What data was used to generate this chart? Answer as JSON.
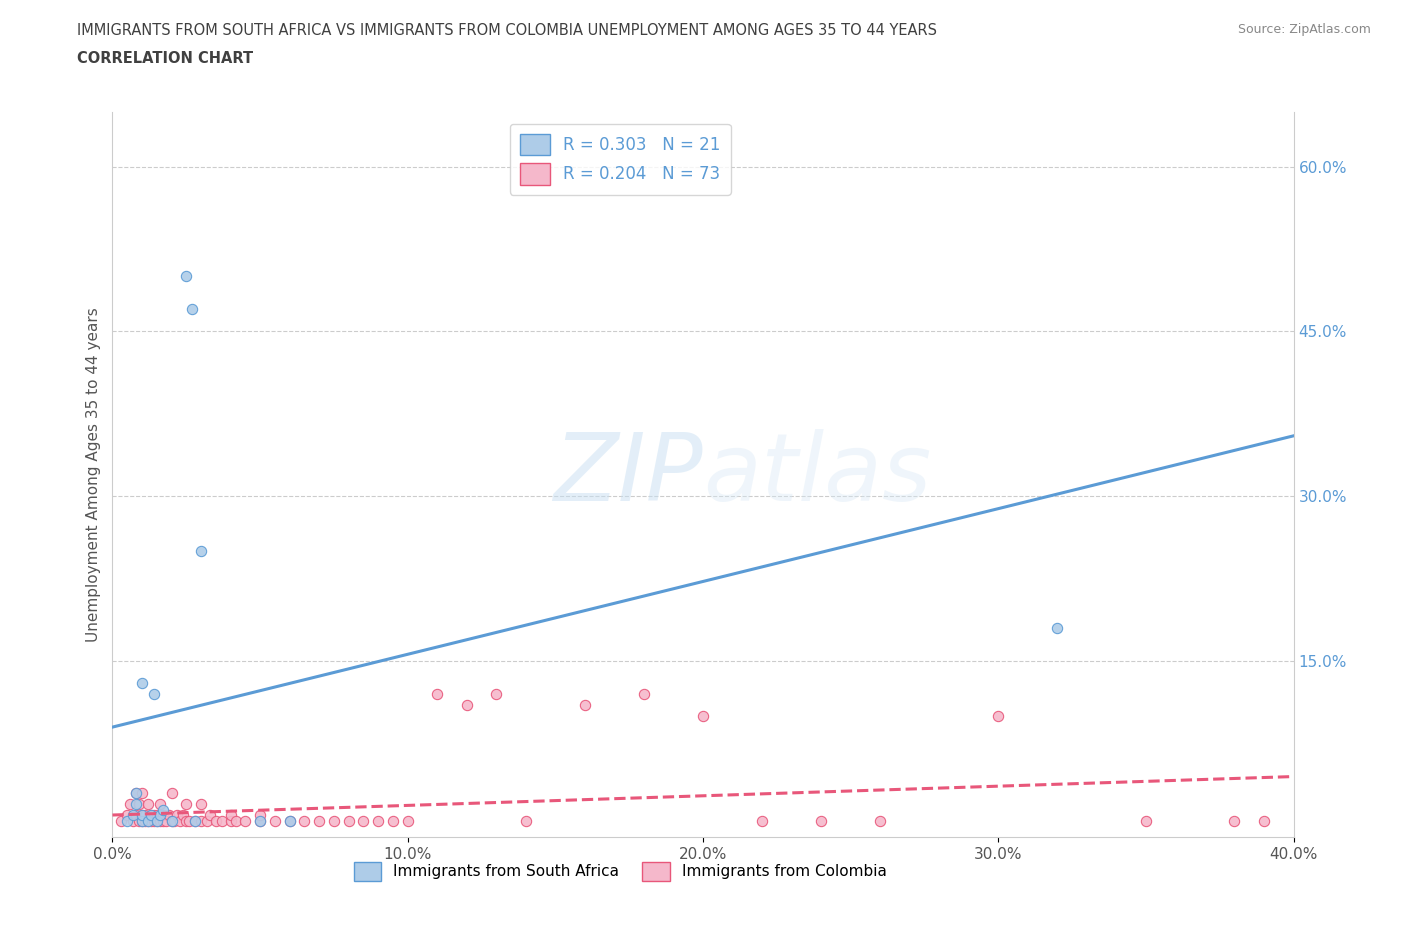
{
  "title_line1": "IMMIGRANTS FROM SOUTH AFRICA VS IMMIGRANTS FROM COLOMBIA UNEMPLOYMENT AMONG AGES 35 TO 44 YEARS",
  "title_line2": "CORRELATION CHART",
  "source_text": "Source: ZipAtlas.com",
  "ylabel": "Unemployment Among Ages 35 to 44 years",
  "xlim": [
    0.0,
    0.4
  ],
  "ylim": [
    -0.01,
    0.65
  ],
  "xticks": [
    0.0,
    0.1,
    0.2,
    0.3,
    0.4
  ],
  "xticklabels": [
    "0.0%",
    "10.0%",
    "20.0%",
    "30.0%",
    "40.0%"
  ],
  "right_ytick_positions": [
    0.15,
    0.3,
    0.45,
    0.6
  ],
  "right_ytick_labels": [
    "15.0%",
    "30.0%",
    "45.0%",
    "60.0%"
  ],
  "south_africa_color": "#aecce8",
  "colombia_color": "#f5b8cb",
  "south_africa_edge_color": "#5b9bd5",
  "colombia_edge_color": "#e8577a",
  "south_africa_line_color": "#5b9bd5",
  "colombia_line_color": "#e8577a",
  "watermark_zip": "ZIP",
  "watermark_atlas": "atlas",
  "legend_R_sa": "R = 0.303",
  "legend_N_sa": "N = 21",
  "legend_R_co": "R = 0.204",
  "legend_N_co": "N = 73",
  "legend_label_sa": "Immigrants from South Africa",
  "legend_label_co": "Immigrants from Colombia",
  "south_africa_x": [
    0.005,
    0.007,
    0.008,
    0.008,
    0.01,
    0.01,
    0.01,
    0.012,
    0.013,
    0.014,
    0.015,
    0.016,
    0.017,
    0.02,
    0.025,
    0.027,
    0.028,
    0.03,
    0.05,
    0.06,
    0.32
  ],
  "south_africa_y": [
    0.005,
    0.01,
    0.02,
    0.03,
    0.005,
    0.01,
    0.13,
    0.005,
    0.01,
    0.12,
    0.005,
    0.01,
    0.015,
    0.005,
    0.5,
    0.47,
    0.005,
    0.25,
    0.005,
    0.005,
    0.18
  ],
  "colombia_x": [
    0.003,
    0.005,
    0.006,
    0.007,
    0.008,
    0.008,
    0.009,
    0.009,
    0.01,
    0.01,
    0.01,
    0.011,
    0.011,
    0.012,
    0.012,
    0.013,
    0.013,
    0.014,
    0.014,
    0.015,
    0.015,
    0.016,
    0.016,
    0.017,
    0.017,
    0.018,
    0.019,
    0.02,
    0.02,
    0.021,
    0.022,
    0.023,
    0.024,
    0.025,
    0.025,
    0.026,
    0.028,
    0.03,
    0.03,
    0.032,
    0.033,
    0.035,
    0.037,
    0.04,
    0.04,
    0.042,
    0.045,
    0.05,
    0.05,
    0.055,
    0.06,
    0.065,
    0.07,
    0.075,
    0.08,
    0.085,
    0.09,
    0.095,
    0.1,
    0.11,
    0.12,
    0.13,
    0.14,
    0.16,
    0.18,
    0.2,
    0.22,
    0.24,
    0.26,
    0.3,
    0.35,
    0.38,
    0.39
  ],
  "colombia_y": [
    0.005,
    0.01,
    0.02,
    0.005,
    0.01,
    0.03,
    0.005,
    0.02,
    0.005,
    0.01,
    0.03,
    0.005,
    0.01,
    0.005,
    0.02,
    0.005,
    0.01,
    0.005,
    0.01,
    0.005,
    0.01,
    0.005,
    0.02,
    0.005,
    0.01,
    0.005,
    0.01,
    0.005,
    0.03,
    0.005,
    0.01,
    0.005,
    0.01,
    0.005,
    0.02,
    0.005,
    0.005,
    0.005,
    0.02,
    0.005,
    0.01,
    0.005,
    0.005,
    0.005,
    0.01,
    0.005,
    0.005,
    0.005,
    0.01,
    0.005,
    0.005,
    0.005,
    0.005,
    0.005,
    0.005,
    0.005,
    0.005,
    0.005,
    0.005,
    0.12,
    0.11,
    0.12,
    0.005,
    0.11,
    0.12,
    0.1,
    0.005,
    0.005,
    0.005,
    0.1,
    0.005,
    0.005,
    0.005
  ],
  "sa_trend_x0": 0.0,
  "sa_trend_x1": 0.4,
  "sa_trend_y0": 0.09,
  "sa_trend_y1": 0.355,
  "co_trend_x0": 0.0,
  "co_trend_x1": 0.4,
  "co_trend_y0": 0.01,
  "co_trend_y1": 0.045,
  "background_color": "#ffffff",
  "grid_color": "#cccccc",
  "title_color": "#404040",
  "axis_label_color": "#555555",
  "right_axis_color": "#5b9bd5"
}
